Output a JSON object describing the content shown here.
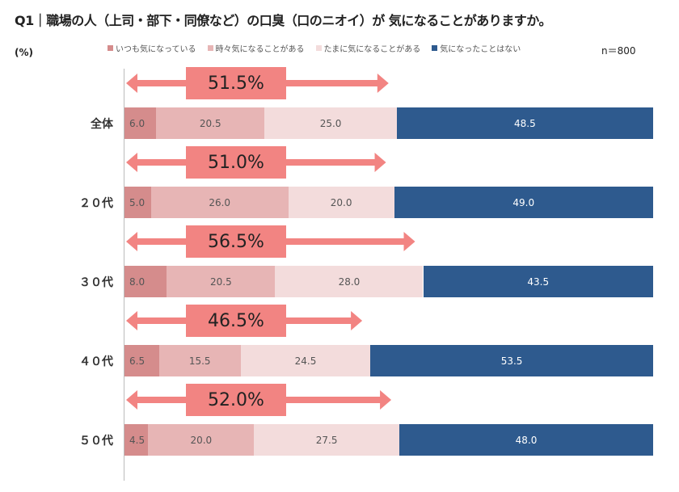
{
  "chart_data": {
    "type": "bar",
    "orientation": "horizontal-stacked-100",
    "title": "Q1｜職場の人（上司・部下・同僚など）の口臭（口のニオイ）が 気になることがありますか。",
    "unit": "(%)",
    "sample": "n＝800",
    "legend_position": "top",
    "categories": [
      "全体",
      "２０代",
      "３０代",
      "４０代",
      "５０代"
    ],
    "series": [
      {
        "name": "いつも気になっている",
        "color": "#d58c8c",
        "values": [
          6.0,
          5.0,
          8.0,
          6.5,
          4.5
        ]
      },
      {
        "name": "時々気になることがある",
        "color": "#e7b5b5",
        "values": [
          20.5,
          26.0,
          20.5,
          15.5,
          20.0
        ]
      },
      {
        "name": "たまに気になることがある",
        "color": "#f3dcdc",
        "values": [
          25.0,
          20.0,
          28.0,
          24.5,
          27.5
        ]
      },
      {
        "name": "気になったことはない",
        "color": "#2e5a8e",
        "values": [
          48.5,
          49.0,
          43.5,
          53.5,
          48.0
        ]
      }
    ],
    "callouts": [
      "51.5%",
      "51.0%",
      "56.5%",
      "46.5%",
      "52.0%"
    ],
    "xlim": [
      0,
      100
    ],
    "callout_color": "#f28482"
  }
}
